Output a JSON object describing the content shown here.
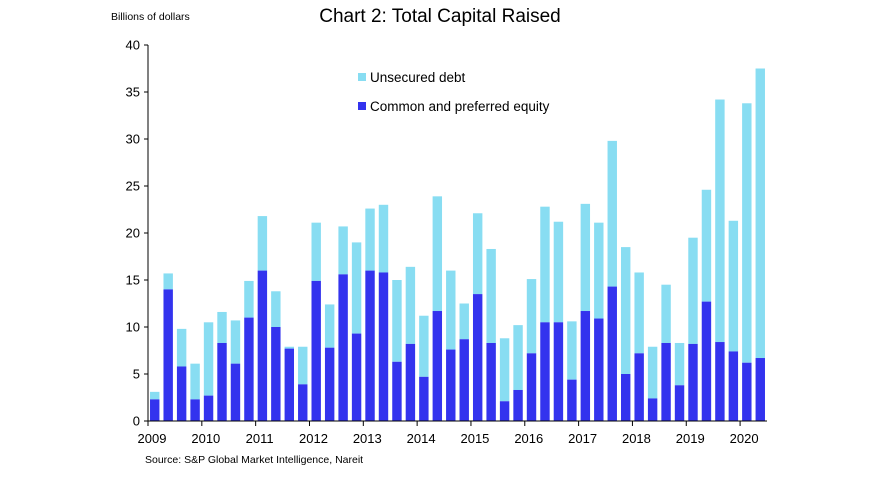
{
  "chart_data": {
    "type": "bar",
    "stacked": true,
    "title": "Chart 2: Total Capital Raised",
    "ylabel": "Billions of dollars",
    "source": "Source: S&P Global Market Intelligence, Nareit",
    "ylim": [
      0,
      40
    ],
    "yticks": [
      0,
      5,
      10,
      15,
      20,
      25,
      30,
      35,
      40
    ],
    "year_labels": [
      "2009",
      "2010",
      "2011",
      "2012",
      "2013",
      "2014",
      "2015",
      "2016",
      "2017",
      "2018",
      "2019",
      "2020"
    ],
    "bars_per_year": 4,
    "legend_position": "top-center",
    "grid": false,
    "colors": {
      "equity": "#3333ee",
      "debt": "#88ddf2"
    },
    "series": [
      {
        "name": "Common and preferred equity",
        "key": "equity",
        "values": [
          2.3,
          14.0,
          5.8,
          2.3,
          2.7,
          8.3,
          6.1,
          11.0,
          16.0,
          10.0,
          7.7,
          3.9,
          14.9,
          7.8,
          15.6,
          9.3,
          16.0,
          15.8,
          6.3,
          8.2,
          4.7,
          11.7,
          7.6,
          8.7,
          13.5,
          8.3,
          2.1,
          3.3,
          7.2,
          10.5,
          10.5,
          4.4,
          11.7,
          10.9,
          14.3,
          5.0,
          7.2,
          2.4,
          8.3,
          3.8,
          8.2,
          12.7,
          8.4,
          7.4,
          6.2,
          6.7
        ]
      },
      {
        "name": "Unsecured debt",
        "key": "debt",
        "values": [
          0.8,
          1.7,
          4.0,
          3.8,
          7.8,
          3.3,
          4.6,
          3.9,
          5.8,
          3.8,
          0.2,
          4.0,
          6.2,
          4.6,
          5.1,
          9.7,
          6.6,
          7.2,
          8.7,
          8.2,
          6.5,
          12.2,
          8.4,
          3.8,
          8.6,
          10.0,
          6.7,
          6.9,
          7.9,
          12.3,
          10.7,
          6.2,
          11.4,
          10.2,
          15.5,
          13.5,
          8.6,
          5.5,
          6.2,
          4.5,
          11.3,
          11.9,
          25.8,
          13.9,
          27.6,
          30.8
        ]
      }
    ]
  }
}
